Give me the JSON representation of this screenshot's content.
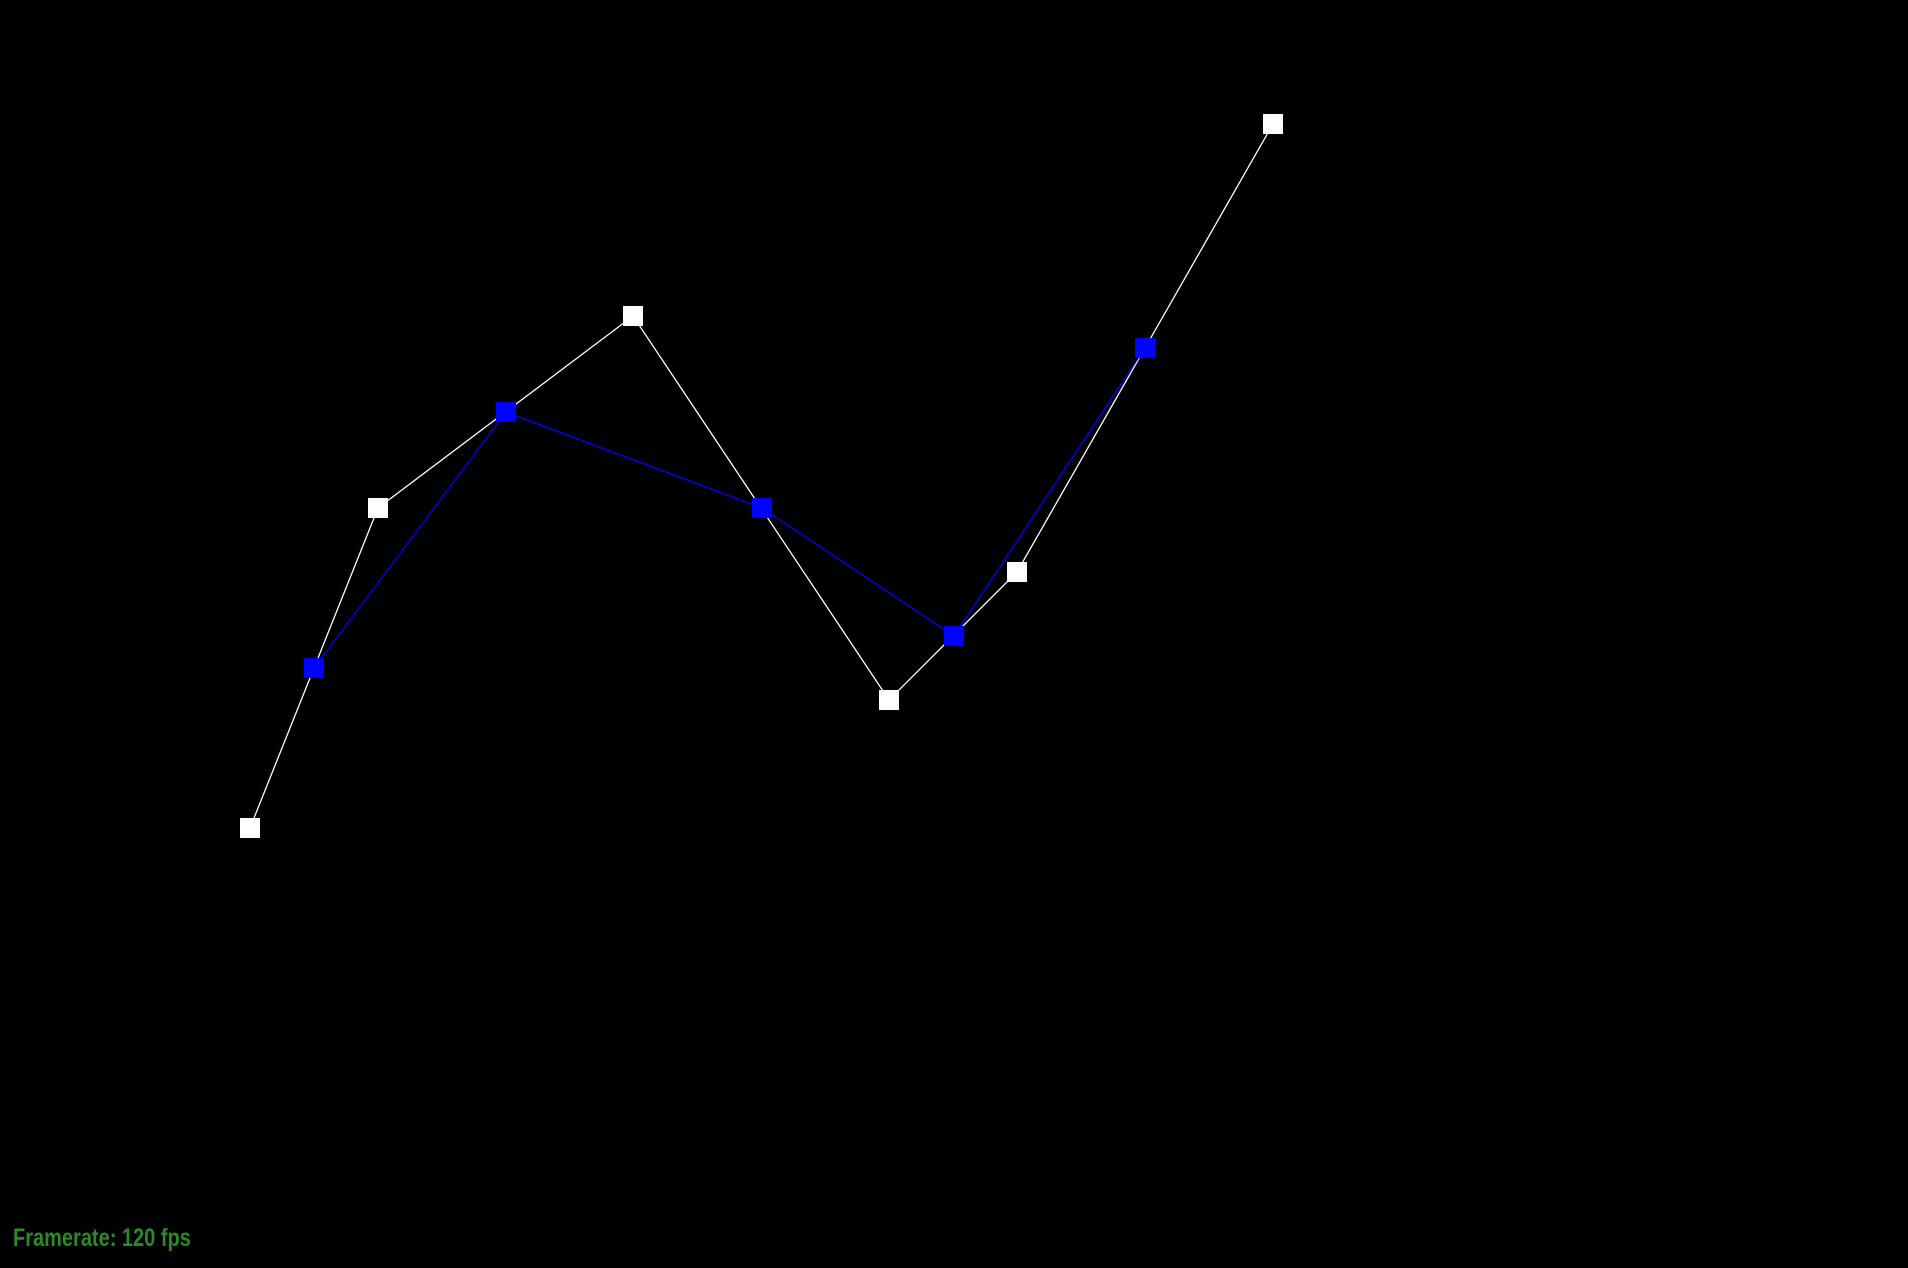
{
  "hud": {
    "framerate_label": "Framerate: 120 fps"
  },
  "colors": {
    "background": "#000000",
    "control_polygon": "#ffffff",
    "subdivided_polygon": "#0000ff",
    "hud_text": "#2a8a2a"
  }
}
